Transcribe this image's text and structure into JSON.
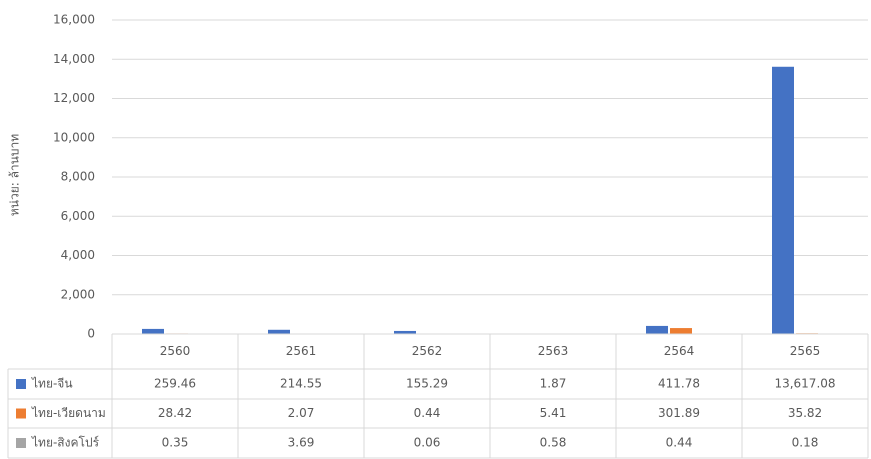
{
  "chart_data": {
    "type": "bar",
    "y_label": "หน่วย: ล้านบาท",
    "categories": [
      "2560",
      "2561",
      "2562",
      "2563",
      "2564",
      "2565"
    ],
    "series": [
      {
        "name": "ไทย-จีน",
        "color": "#4472c4",
        "values": [
          259.46,
          214.55,
          155.29,
          1.87,
          411.78,
          13617.08
        ],
        "value_labels": [
          "259.46",
          "214.55",
          "155.29",
          "1.87",
          "411.78",
          "13,617.08"
        ]
      },
      {
        "name": "ไทย-เวียดนาม",
        "color": "#ed7d31",
        "values": [
          28.42,
          2.07,
          0.44,
          5.41,
          301.89,
          35.82
        ]
      },
      {
        "name": "ไทย-สิงคโปร์",
        "color": "#a5a5a5",
        "values": [
          0.35,
          3.69,
          0.06,
          0.58,
          0.44,
          0.18
        ]
      }
    ],
    "ylim": [
      0,
      16000
    ],
    "yticks": [
      0,
      {
        "value": 2000,
        "label": "2,000"
      },
      {
        "value": 4000,
        "label": "4,000"
      },
      {
        "value": 6000,
        "label": "6,000"
      },
      {
        "value": 8000,
        "label": "8,000"
      },
      {
        "value": 10000,
        "label": "10,000"
      },
      {
        "value": 12000,
        "label": "12,000"
      },
      {
        "value": 14000,
        "label": "14,000"
      },
      {
        "value": 16000,
        "label": "16,000"
      }
    ],
    "grid": true
  }
}
